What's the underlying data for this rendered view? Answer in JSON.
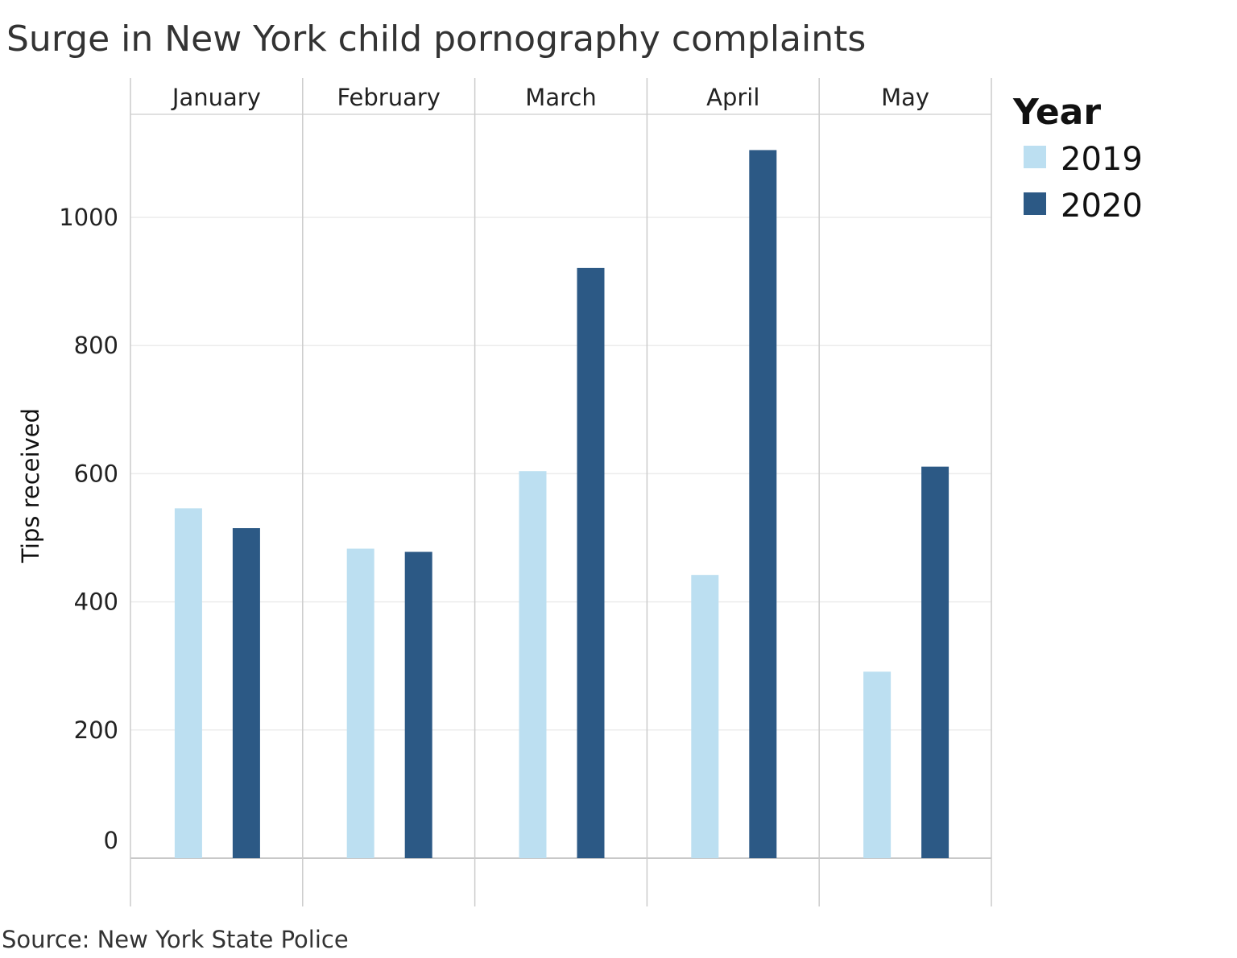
{
  "chart_data": {
    "type": "bar",
    "title": "Surge in New York child pornography complaints",
    "source": "Source: New York State Police",
    "ylabel": "Tips received",
    "xlabel": "",
    "ylim": [
      0,
      1150
    ],
    "yticks": [
      0,
      200,
      400,
      600,
      800,
      1000
    ],
    "categories": [
      "January",
      "February",
      "March",
      "April",
      "May"
    ],
    "legend": {
      "title": "Year",
      "placement": "right"
    },
    "gridlines": true,
    "series": [
      {
        "name": "2019",
        "color": "#bcdff1",
        "values": [
          546,
          483,
          604,
          442,
          291
        ]
      },
      {
        "name": "2020",
        "color": "#2c5985",
        "values": [
          515,
          478,
          921,
          1105,
          611
        ]
      }
    ]
  }
}
